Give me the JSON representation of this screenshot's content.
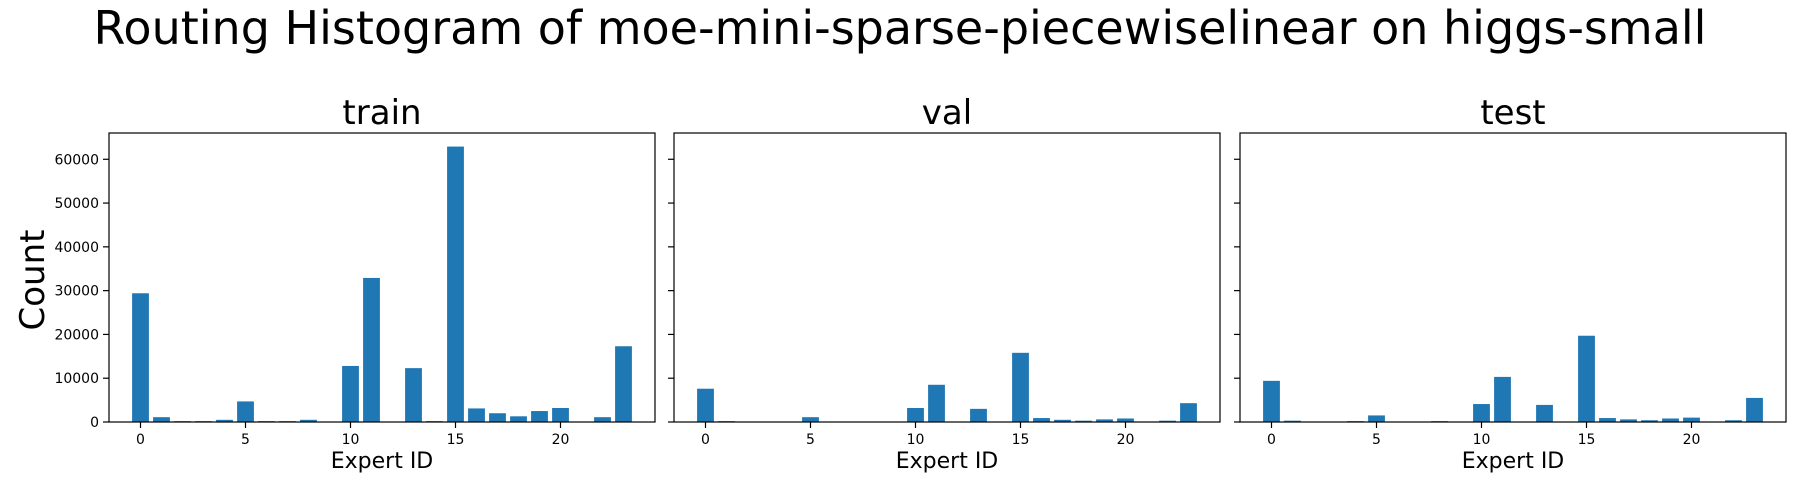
{
  "title": "Routing Histogram of moe-mini-sparse-piecewiselinear on higgs-small",
  "chart_data": {
    "type": "bar",
    "title": "Routing Histogram of moe-mini-sparse-piecewiselinear on higgs-small",
    "ylabel": "Count",
    "xlabel": "Expert ID",
    "ylim": [
      0,
      66000
    ],
    "xlim": [
      -1.5,
      24.5
    ],
    "yticks": [
      0,
      10000,
      20000,
      30000,
      40000,
      50000,
      60000
    ],
    "xticks": [
      0,
      5,
      10,
      15,
      20
    ],
    "bar_color": "#1f77b4",
    "sharey": true,
    "panels": [
      {
        "title": "train",
        "xlabel": "Expert ID",
        "categories": [
          0,
          1,
          2,
          3,
          4,
          5,
          6,
          7,
          8,
          9,
          10,
          11,
          12,
          13,
          14,
          15,
          16,
          17,
          18,
          19,
          20,
          21,
          22,
          23
        ],
        "values": [
          29400,
          1100,
          200,
          200,
          500,
          4700,
          200,
          200,
          500,
          0,
          12800,
          32900,
          0,
          12300,
          200,
          62900,
          3100,
          2000,
          1300,
          2500,
          3200,
          0,
          1100,
          17300
        ]
      },
      {
        "title": "val",
        "xlabel": "Expert ID",
        "categories": [
          0,
          1,
          2,
          3,
          4,
          5,
          6,
          7,
          8,
          9,
          10,
          11,
          12,
          13,
          14,
          15,
          16,
          17,
          18,
          19,
          20,
          21,
          22,
          23
        ],
        "values": [
          7600,
          200,
          100,
          0,
          100,
          1100,
          100,
          0,
          100,
          0,
          3200,
          8500,
          0,
          3000,
          100,
          15800,
          900,
          500,
          300,
          600,
          800,
          0,
          300,
          4300
        ]
      },
      {
        "title": "test",
        "xlabel": "Expert ID",
        "categories": [
          0,
          1,
          2,
          3,
          4,
          5,
          6,
          7,
          8,
          9,
          10,
          11,
          12,
          13,
          14,
          15,
          16,
          17,
          18,
          19,
          20,
          21,
          22,
          23
        ],
        "values": [
          9400,
          300,
          100,
          100,
          200,
          1500,
          100,
          0,
          200,
          0,
          4100,
          10300,
          0,
          3900,
          100,
          19700,
          900,
          600,
          400,
          800,
          1000,
          0,
          400,
          5500
        ]
      }
    ]
  }
}
